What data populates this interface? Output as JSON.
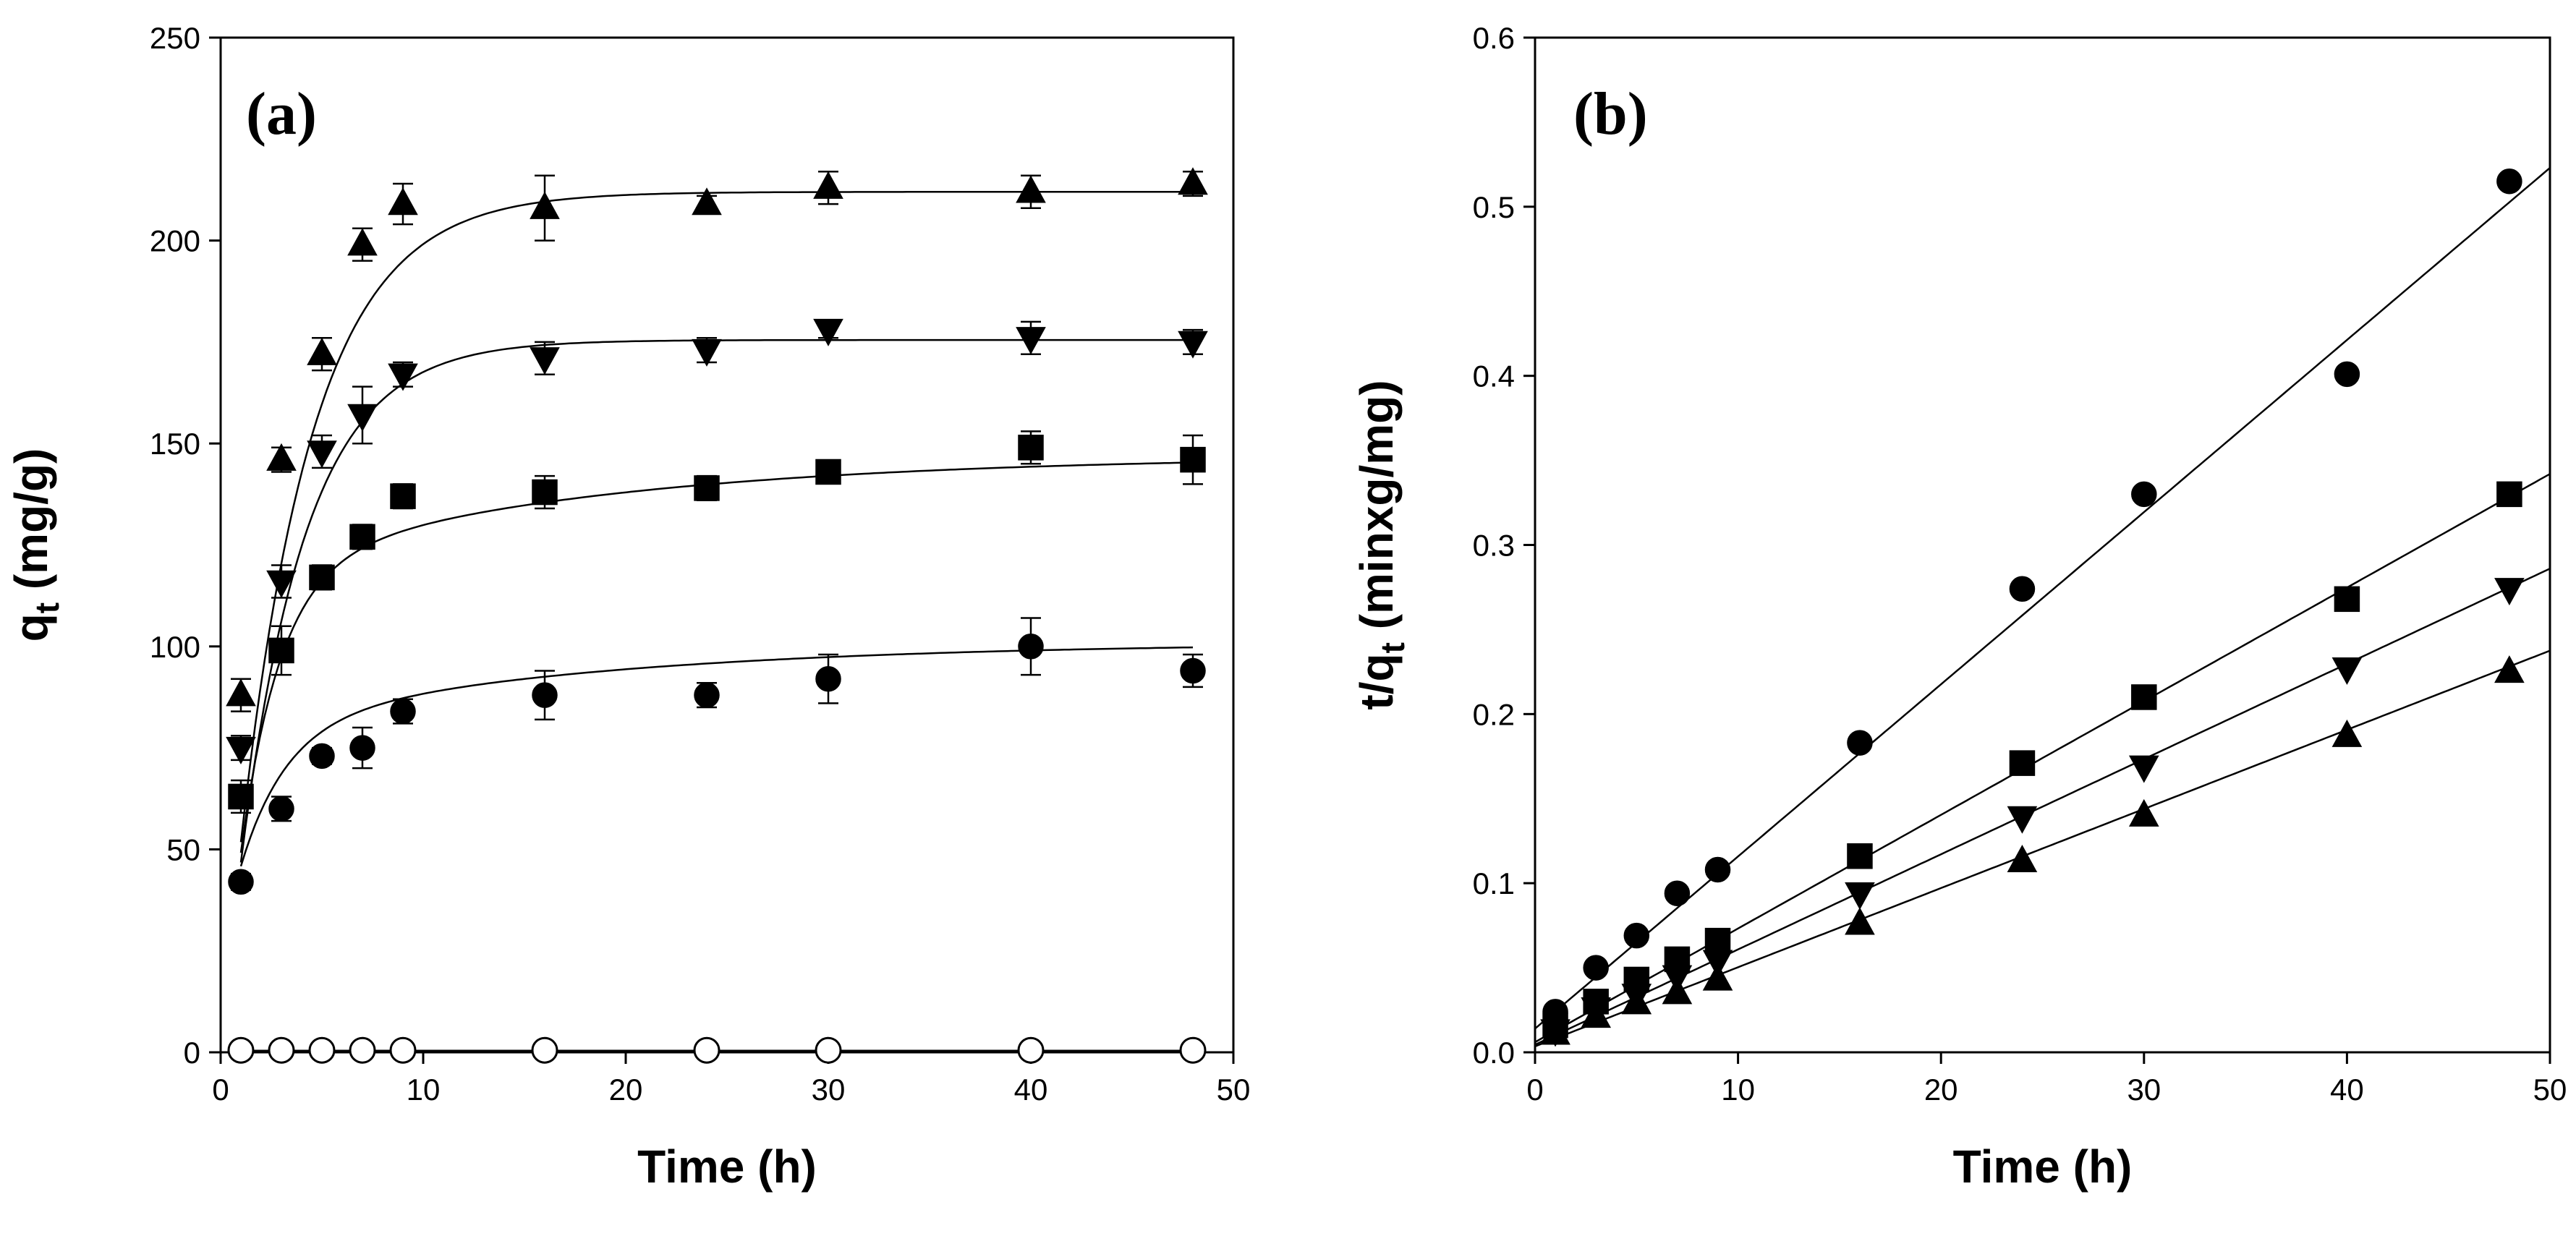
{
  "chart_data": [
    {
      "type": "scatter",
      "panel_label": "(a)",
      "xlabel": "Time (h)",
      "ylabel_main": "q",
      "ylabel_sub": "t",
      "ylabel_rest": " (mg/g)",
      "xlim": [
        0,
        50
      ],
      "ylim": [
        0,
        250
      ],
      "xticks": [
        0,
        10,
        20,
        30,
        40,
        50
      ],
      "yticks": [
        0,
        50,
        100,
        150,
        200,
        250
      ],
      "grid": false,
      "x": [
        1,
        3,
        5,
        7,
        9,
        16,
        24,
        30,
        40,
        48
      ],
      "series": [
        {
          "name": "triangle-up",
          "marker": "triangle-up",
          "filled": true,
          "values": [
            88,
            146,
            172,
            199,
            209,
            208,
            209,
            213,
            212,
            214
          ],
          "errors": [
            4,
            3,
            4,
            4,
            5,
            8,
            2,
            4,
            4,
            3
          ],
          "fit": {
            "model": "pseudo-first-order",
            "qe": 212,
            "k": 0.28
          }
        },
        {
          "name": "triangle-down",
          "marker": "triangle-down",
          "filled": true,
          "values": [
            75,
            116,
            148,
            157,
            167,
            171,
            173,
            178,
            176,
            175
          ],
          "errors": [
            3,
            4,
            4,
            7,
            3,
            4,
            3,
            2,
            4,
            3
          ],
          "fit": {
            "model": "pseudo-first-order",
            "qe": 175.5,
            "k": 0.31
          }
        },
        {
          "name": "square",
          "marker": "square",
          "filled": true,
          "values": [
            63,
            99,
            117,
            127,
            137,
            138,
            139,
            143,
            149,
            146
          ],
          "errors": [
            4,
            6,
            3,
            3,
            3,
            4,
            3,
            2,
            4,
            6
          ],
          "fit": {
            "model": "biexponential",
            "a1": 117,
            "k1": 0.52,
            "a2": 30,
            "k2": 0.06,
            "c": 0
          }
        },
        {
          "name": "circle",
          "marker": "circle",
          "filled": true,
          "values": [
            42,
            60,
            73,
            75,
            84,
            88,
            88,
            92,
            100,
            94
          ],
          "errors": [
            2,
            3,
            2,
            5,
            3,
            6,
            3,
            6,
            7,
            4
          ],
          "fit": {
            "model": "biexponential",
            "a1": 54,
            "k1": 0.45,
            "a2": 22,
            "k2": 0.06,
            "c": 25
          }
        },
        {
          "name": "open-circle",
          "marker": "circle",
          "filled": false,
          "values": [
            0.5,
            0.5,
            0.5,
            0.5,
            0.5,
            0.5,
            0.5,
            0.5,
            0.5,
            0.5
          ],
          "errors": [
            0,
            0,
            0,
            0,
            0,
            0,
            0,
            0,
            0,
            0
          ],
          "fit": {
            "model": "linear",
            "slope": 0,
            "intercept": 0.4
          }
        }
      ]
    },
    {
      "type": "scatter",
      "panel_label": "(b)",
      "xlabel": "Time (h)",
      "ylabel_main": "t/q",
      "ylabel_sub": "t",
      "ylabel_rest": " (minxg/mg)",
      "xlim": [
        0,
        50
      ],
      "ylim": [
        0,
        0.6
      ],
      "xticks": [
        0,
        10,
        20,
        30,
        40,
        50
      ],
      "yticks": [
        0.0,
        0.1,
        0.2,
        0.3,
        0.4,
        0.5,
        0.6
      ],
      "ytick_labels": [
        "0.0",
        "0.1",
        "0.2",
        "0.3",
        "0.4",
        "0.5",
        "0.6"
      ],
      "grid": false,
      "x": [
        1,
        3,
        5,
        7,
        9,
        16,
        24,
        30,
        40,
        48
      ],
      "series": [
        {
          "name": "circle",
          "marker": "circle",
          "filled": true,
          "values": [
            0.024,
            0.05,
            0.069,
            0.094,
            0.108,
            0.183,
            0.274,
            0.33,
            0.401,
            0.515
          ],
          "fit": {
            "model": "linear",
            "slope": 0.01018,
            "intercept": 0.014
          }
        },
        {
          "name": "square",
          "marker": "square",
          "filled": true,
          "values": [
            0.016,
            0.03,
            0.043,
            0.055,
            0.066,
            0.116,
            0.171,
            0.21,
            0.268,
            0.33
          ],
          "fit": {
            "model": "linear",
            "slope": 0.00672,
            "intercept": 0.006
          }
        },
        {
          "name": "triangle-down",
          "marker": "triangle-down",
          "filled": true,
          "values": [
            0.013,
            0.026,
            0.034,
            0.045,
            0.054,
            0.094,
            0.139,
            0.169,
            0.227,
            0.274
          ],
          "fit": {
            "model": "linear",
            "slope": 0.00563,
            "intercept": 0.0045
          }
        },
        {
          "name": "triangle-up",
          "marker": "triangle-up",
          "filled": true,
          "values": [
            0.011,
            0.021,
            0.029,
            0.035,
            0.043,
            0.076,
            0.113,
            0.14,
            0.187,
            0.225
          ],
          "fit": {
            "model": "linear",
            "slope": 0.00468,
            "intercept": 0.0035
          }
        }
      ]
    }
  ]
}
